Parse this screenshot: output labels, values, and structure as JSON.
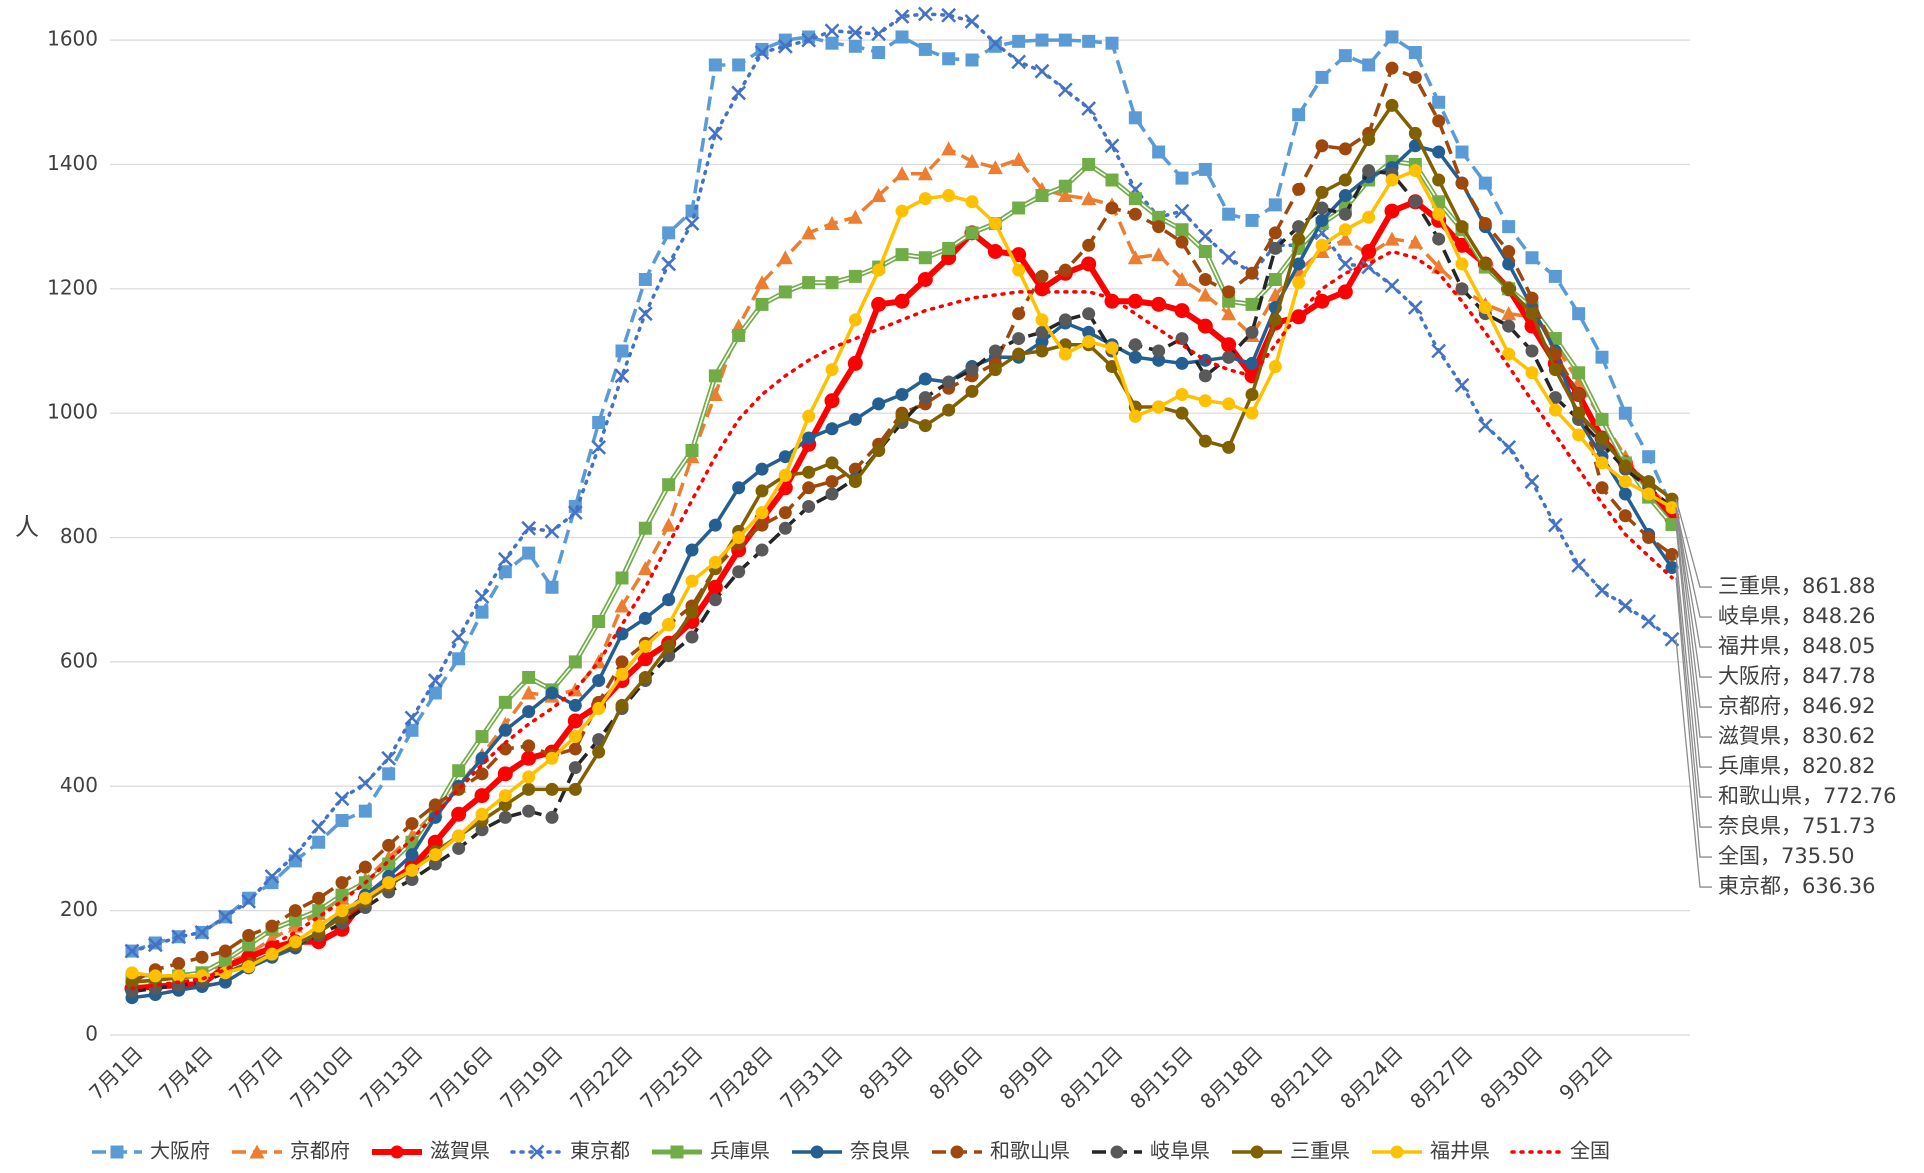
{
  "chart_data": {
    "type": "line",
    "y_label": "人",
    "categories": [
      "7月1日",
      null,
      null,
      "7月4日",
      null,
      null,
      "7月7日",
      null,
      null,
      "7月10日",
      null,
      null,
      "7月13日",
      null,
      null,
      "7月16日",
      null,
      null,
      "7月19日",
      null,
      null,
      "7月22日",
      null,
      null,
      "7月25日",
      null,
      null,
      "7月28日",
      null,
      null,
      "7月31日",
      null,
      null,
      "8月3日",
      null,
      null,
      "8月6日",
      null,
      null,
      "8月9日",
      null,
      null,
      "8月12日",
      null,
      null,
      "8月15日",
      null,
      null,
      "8月18日",
      null,
      null,
      "8月21日",
      null,
      null,
      "8月24日",
      null,
      null,
      "8月27日",
      null,
      null,
      "8月30日",
      null,
      null,
      "9月2日",
      null,
      null,
      null
    ],
    "ylim": [
      0,
      1650
    ],
    "yticks": [
      0,
      200,
      400,
      600,
      800,
      1000,
      1200,
      1400,
      1600
    ],
    "grid": true,
    "legend": "bottom",
    "series": [
      {
        "name": "大阪府",
        "color": "#5b9bd5",
        "dash": "dash",
        "marker": "square",
        "end_label": "大阪府，847.78",
        "values": [
          135,
          148,
          158,
          165,
          190,
          220,
          245,
          280,
          310,
          345,
          360,
          420,
          490,
          550,
          605,
          680,
          745,
          775,
          720,
          850,
          985,
          1100,
          1215,
          1290,
          1325,
          1560,
          1560,
          1585,
          1600,
          1605,
          1595,
          1590,
          1580,
          1605,
          1585,
          1570,
          1568,
          1590,
          1598,
          1600,
          1600,
          1598,
          1595,
          1475,
          1420,
          1378,
          1392,
          1320,
          1310,
          1335,
          1480,
          1540,
          1575,
          1560,
          1605,
          1580,
          1500,
          1420,
          1370,
          1300,
          1250,
          1220,
          1160,
          1090,
          1000,
          930,
          847.78
        ]
      },
      {
        "name": "京都府",
        "color": "#ed7d31",
        "dash": "dash",
        "marker": "triangle",
        "end_label": "京都府，846.92",
        "values": [
          85,
          90,
          95,
          100,
          115,
          130,
          155,
          175,
          195,
          220,
          250,
          285,
          320,
          360,
          400,
          450,
          500,
          550,
          545,
          555,
          600,
          690,
          750,
          820,
          930,
          1030,
          1140,
          1210,
          1250,
          1290,
          1305,
          1315,
          1350,
          1385,
          1385,
          1425,
          1405,
          1395,
          1408,
          1360,
          1350,
          1345,
          1335,
          1250,
          1255,
          1215,
          1190,
          1160,
          1125,
          1190,
          1230,
          1260,
          1280,
          1255,
          1280,
          1275,
          1235,
          1200,
          1175,
          1160,
          1155,
          1110,
          1050,
          990,
          930,
          880,
          846.92
        ]
      },
      {
        "name": "滋賀県",
        "color": "#ff0000",
        "dash": "solid",
        "marker": "circle",
        "width": 6,
        "end_label": "滋賀県，830.62",
        "values": [
          75,
          78,
          80,
          82,
          110,
          125,
          140,
          150,
          150,
          170,
          220,
          245,
          270,
          310,
          355,
          385,
          420,
          445,
          455,
          505,
          530,
          570,
          605,
          630,
          665,
          720,
          780,
          830,
          880,
          950,
          1020,
          1080,
          1175,
          1180,
          1215,
          1250,
          1290,
          1260,
          1255,
          1200,
          1225,
          1240,
          1180,
          1180,
          1175,
          1165,
          1140,
          1110,
          1060,
          1145,
          1155,
          1180,
          1195,
          1260,
          1325,
          1340,
          1310,
          1270,
          1240,
          1200,
          1140,
          1080,
          1030,
          960,
          920,
          880,
          830.62
        ]
      },
      {
        "name": "東京都",
        "color": "#4472c4",
        "dash": "dot",
        "marker": "x",
        "end_label": "東京都，636.36",
        "values": [
          135,
          145,
          158,
          165,
          190,
          215,
          255,
          290,
          335,
          380,
          405,
          445,
          510,
          570,
          640,
          705,
          765,
          815,
          810,
          840,
          945,
          1060,
          1160,
          1240,
          1305,
          1450,
          1515,
          1580,
          1590,
          1600,
          1615,
          1612,
          1610,
          1638,
          1642,
          1640,
          1630,
          1595,
          1565,
          1550,
          1520,
          1490,
          1430,
          1360,
          1315,
          1325,
          1285,
          1250,
          1225,
          1270,
          1270,
          1290,
          1240,
          1235,
          1205,
          1170,
          1100,
          1045,
          980,
          945,
          890,
          820,
          755,
          715,
          690,
          665,
          636.36
        ]
      },
      {
        "name": "兵庫県",
        "color": "#70ad47",
        "dash": "double",
        "marker": "square",
        "end_label": "兵庫県，820.82",
        "values": [
          90,
          92,
          95,
          100,
          120,
          145,
          170,
          185,
          200,
          225,
          245,
          275,
          310,
          360,
          425,
          480,
          535,
          575,
          555,
          600,
          665,
          735,
          815,
          885,
          940,
          1060,
          1125,
          1175,
          1195,
          1210,
          1210,
          1220,
          1235,
          1255,
          1250,
          1265,
          1290,
          1305,
          1330,
          1350,
          1365,
          1400,
          1375,
          1345,
          1315,
          1295,
          1260,
          1180,
          1175,
          1215,
          1265,
          1305,
          1330,
          1375,
          1405,
          1400,
          1340,
          1295,
          1235,
          1200,
          1170,
          1120,
          1065,
          990,
          920,
          865,
          820.82
        ]
      },
      {
        "name": "奈良県",
        "color": "#255e91",
        "dash": "solid",
        "marker": "circle",
        "end_label": "奈良県，751.73",
        "values": [
          60,
          65,
          72,
          78,
          85,
          108,
          125,
          140,
          165,
          195,
          225,
          255,
          290,
          350,
          400,
          445,
          490,
          520,
          550,
          530,
          570,
          645,
          670,
          700,
          780,
          820,
          880,
          910,
          930,
          960,
          975,
          990,
          1015,
          1030,
          1055,
          1050,
          1075,
          1090,
          1090,
          1115,
          1145,
          1130,
          1110,
          1090,
          1085,
          1080,
          1085,
          1090,
          1080,
          1170,
          1240,
          1310,
          1350,
          1380,
          1395,
          1430,
          1420,
          1370,
          1300,
          1240,
          1170,
          1100,
          990,
          930,
          870,
          805,
          751.73
        ]
      },
      {
        "name": "和歌山県",
        "color": "#9e480e",
        "dash": "dash",
        "marker": "circle",
        "end_label": "和歌山県，772.76",
        "values": [
          85,
          105,
          115,
          125,
          135,
          160,
          175,
          200,
          220,
          245,
          270,
          305,
          340,
          370,
          395,
          420,
          460,
          465,
          450,
          460,
          535,
          600,
          630,
          660,
          690,
          750,
          790,
          820,
          840,
          880,
          890,
          910,
          950,
          1000,
          1015,
          1040,
          1060,
          1080,
          1160,
          1220,
          1230,
          1270,
          1330,
          1320,
          1300,
          1275,
          1215,
          1195,
          1225,
          1290,
          1360,
          1430,
          1425,
          1450,
          1555,
          1540,
          1470,
          1370,
          1305,
          1260,
          1185,
          1095,
          1030,
          880,
          835,
          800,
          772.76
        ]
      },
      {
        "name": "岐阜県",
        "color": "#262626",
        "dash": "dash",
        "marker": "circle",
        "marker_color": "#595959",
        "end_label": "岐阜県，848.26",
        "values": [
          70,
          75,
          80,
          85,
          100,
          115,
          130,
          145,
          160,
          180,
          205,
          230,
          250,
          275,
          300,
          330,
          350,
          360,
          350,
          430,
          475,
          525,
          570,
          610,
          640,
          700,
          745,
          780,
          815,
          850,
          870,
          895,
          940,
          985,
          1025,
          1050,
          1070,
          1100,
          1120,
          1130,
          1150,
          1160,
          1100,
          1110,
          1100,
          1120,
          1060,
          1090,
          1130,
          1265,
          1300,
          1330,
          1320,
          1390,
          1385,
          1340,
          1280,
          1200,
          1160,
          1140,
          1100,
          1025,
          990,
          950,
          910,
          880,
          848.26
        ]
      },
      {
        "name": "三重県",
        "color": "#806000",
        "dash": "solid",
        "marker": "circle",
        "end_label": "三重県，861.88",
        "values": [
          85,
          88,
          92,
          95,
          100,
          115,
          130,
          145,
          165,
          190,
          215,
          240,
          265,
          295,
          320,
          345,
          370,
          395,
          395,
          395,
          455,
          530,
          575,
          625,
          680,
          750,
          810,
          875,
          900,
          905,
          920,
          890,
          940,
          995,
          980,
          1005,
          1035,
          1070,
          1095,
          1100,
          1110,
          1110,
          1075,
          1010,
          1010,
          1000,
          955,
          945,
          1030,
          1150,
          1280,
          1355,
          1375,
          1440,
          1495,
          1450,
          1375,
          1300,
          1240,
          1200,
          1160,
          1070,
          1000,
          960,
          915,
          890,
          861.88
        ]
      },
      {
        "name": "福井県",
        "color": "#ffc000",
        "dash": "solid",
        "marker": "circle",
        "end_label": "福井県，848.05",
        "values": [
          100,
          95,
          95,
          95,
          100,
          110,
          130,
          150,
          175,
          200,
          220,
          245,
          265,
          290,
          320,
          355,
          385,
          415,
          445,
          480,
          525,
          580,
          625,
          660,
          730,
          760,
          800,
          840,
          900,
          995,
          1070,
          1150,
          1230,
          1325,
          1345,
          1350,
          1340,
          1305,
          1230,
          1150,
          1095,
          1115,
          1105,
          995,
          1010,
          1030,
          1020,
          1015,
          1000,
          1075,
          1210,
          1270,
          1295,
          1315,
          1375,
          1390,
          1320,
          1240,
          1170,
          1095,
          1065,
          1005,
          965,
          920,
          890,
          870,
          848.05
        ]
      },
      {
        "name": "全国",
        "color": "#ff0000",
        "dash": "dot",
        "marker": "none",
        "end_label": "全国，735.50",
        "values": [
          75,
          80,
          85,
          90,
          105,
          125,
          145,
          165,
          190,
          215,
          245,
          280,
          315,
          355,
          395,
          435,
          470,
          500,
          525,
          555,
          600,
          660,
          720,
          790,
          860,
          930,
          990,
          1030,
          1060,
          1085,
          1105,
          1120,
          1135,
          1150,
          1165,
          1175,
          1185,
          1190,
          1195,
          1195,
          1195,
          1195,
          1185,
          1160,
          1135,
          1110,
          1085,
          1070,
          1060,
          1110,
          1160,
          1200,
          1225,
          1240,
          1260,
          1250,
          1225,
          1180,
          1130,
          1075,
          1020,
          965,
          910,
          855,
          805,
          770,
          735.5
        ]
      }
    ]
  }
}
